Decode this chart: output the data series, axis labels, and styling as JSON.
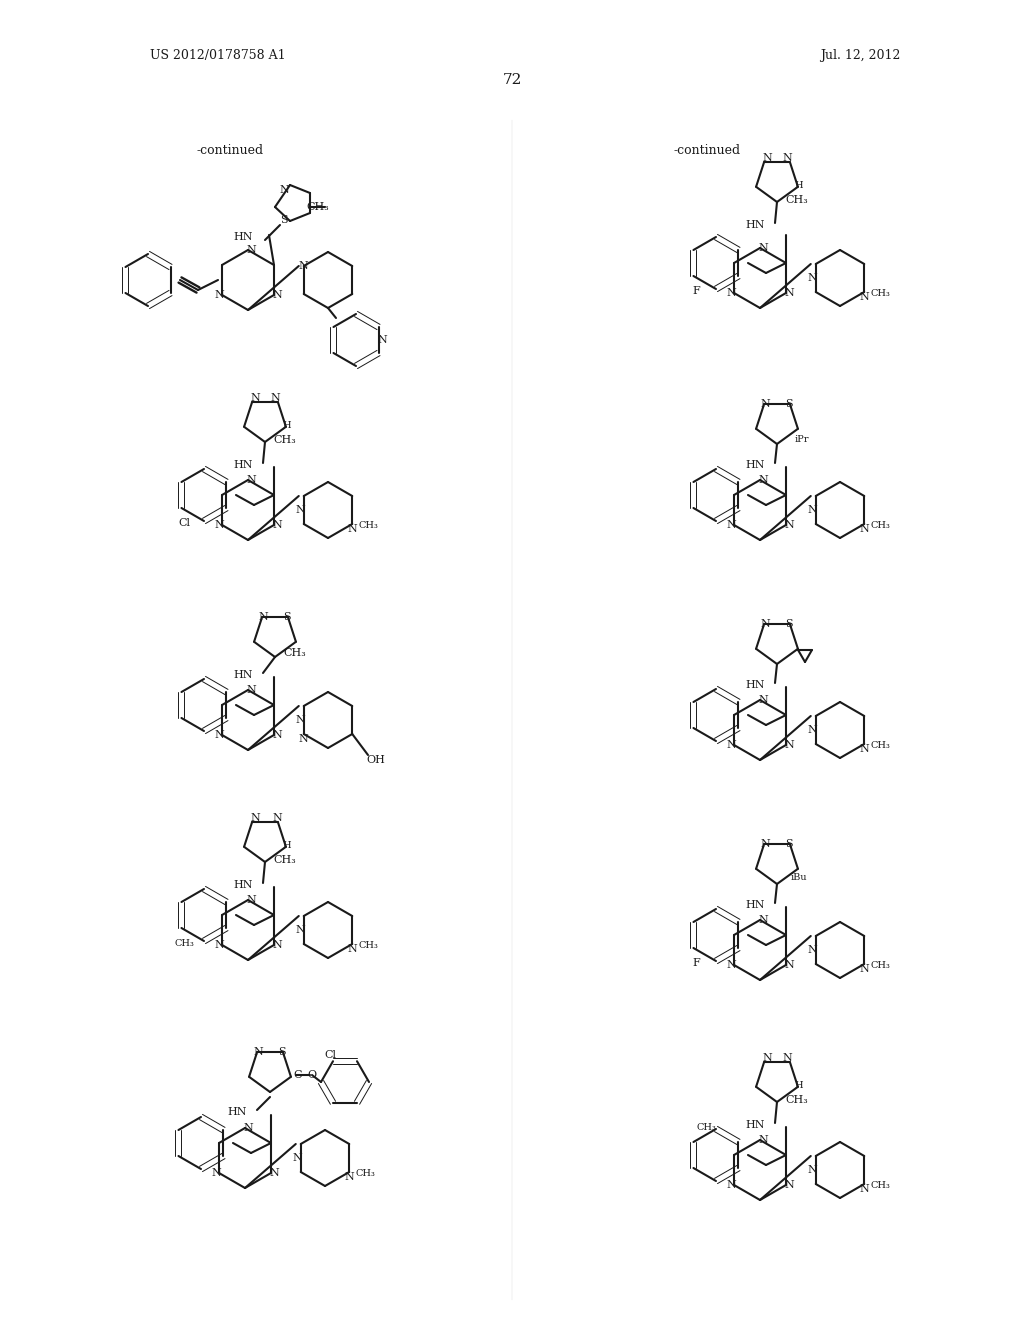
{
  "page_header_left": "US 2012/0178758 A1",
  "page_header_right": "Jul. 12, 2012",
  "page_number": "72",
  "background_color": "#ffffff",
  "text_color": "#1a1a1a",
  "line_color": "#1a1a1a",
  "continued_label": "-continued",
  "fig_width": 10.24,
  "fig_height": 13.2,
  "dpi": 100
}
